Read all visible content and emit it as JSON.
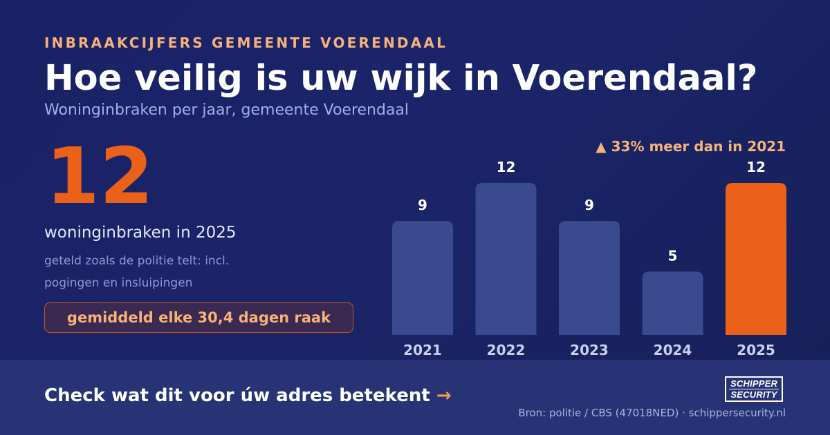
{
  "header": {
    "eyebrow": "INBRAAKCIJFERS GEMEENTE VOERENDAAL",
    "title": "Hoe veilig is uw wijk in Voerendaal?",
    "subtitle": "Woninginbraken per jaar, gemeente Voerendaal"
  },
  "highlight": {
    "value": "12",
    "caption": "woninginbraken in 2025",
    "note": "geteld zoals de politie telt: incl. pogingen en insluipingen",
    "pill": "gemiddeld elke 30,4 dagen raak"
  },
  "delta_label": "▲ 33% meer dan in 2021",
  "colors": {
    "background": "#1a2266",
    "bar": "#3a4a8f",
    "bar_highlight": "#ec6119",
    "accent_text": "#f7b27a",
    "footer": "#283375"
  },
  "chart_data": {
    "type": "bar",
    "categories": [
      "2021",
      "2022",
      "2023",
      "2024",
      "2025"
    ],
    "values": [
      9,
      12,
      9,
      5,
      12
    ],
    "highlight_index": 4,
    "data_labels": [
      "9",
      "12",
      "9",
      "5",
      "12"
    ],
    "ylim": [
      0,
      12
    ],
    "grid": false,
    "title": "",
    "xlabel": "",
    "ylabel": ""
  },
  "footer": {
    "cta": "Check wat dit voor úw adres betekent",
    "cta_arrow": "→",
    "logo_line1": "SCHIPPER",
    "logo_line2": "SECURITY",
    "source": "Bron: politie / CBS (47018NED) · schippersecurity.nl"
  }
}
